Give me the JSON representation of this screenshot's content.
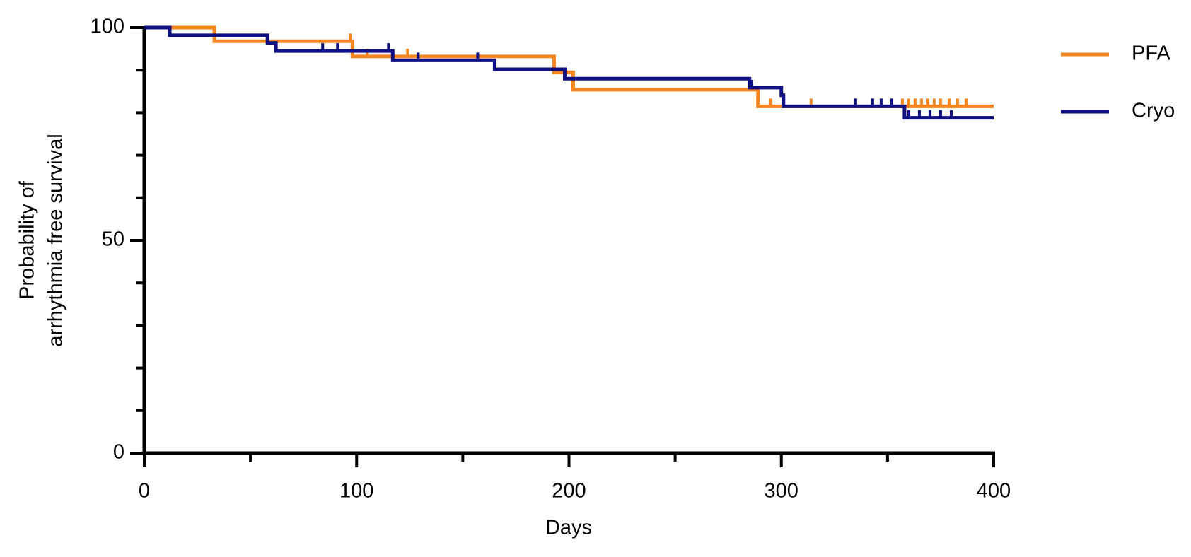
{
  "chart_data": {
    "type": "step",
    "xlabel": "Days",
    "ylabel": [
      "Probability of",
      "arrhythmia free survival"
    ],
    "xlim": [
      0,
      400
    ],
    "xticks": [
      0,
      100,
      200,
      300,
      400
    ],
    "xminorticks": [
      50,
      150,
      250,
      350
    ],
    "ylim": [
      0,
      100
    ],
    "yticks": [
      0,
      50,
      100
    ],
    "yminorticks": [
      10,
      20,
      30,
      40,
      60,
      70,
      80,
      90
    ],
    "legend": "right",
    "series": [
      {
        "name": "PFA",
        "color": "#f5861f",
        "x": [
          0,
          33,
          98,
          193,
          202,
          289,
          400
        ],
        "values": [
          100,
          96.8,
          93.2,
          89.5,
          85.4,
          81.5,
          81.5
        ],
        "censored": [
          97,
          105,
          124,
          295,
          314,
          357,
          360,
          363,
          366,
          369,
          372,
          375,
          379,
          383,
          387
        ]
      },
      {
        "name": "Cryo",
        "color": "#101080",
        "x": [
          0,
          12,
          58,
          62,
          117,
          165,
          198,
          285,
          300,
          301,
          358,
          400
        ],
        "values": [
          100,
          98.2,
          96.4,
          94.5,
          92.3,
          90.2,
          88,
          85.9,
          84.1,
          81.5,
          78.8,
          78.8
        ],
        "censored": [
          84,
          91,
          115,
          129,
          157,
          286,
          335,
          343,
          347,
          352,
          360,
          365,
          370,
          375,
          380
        ]
      }
    ]
  }
}
